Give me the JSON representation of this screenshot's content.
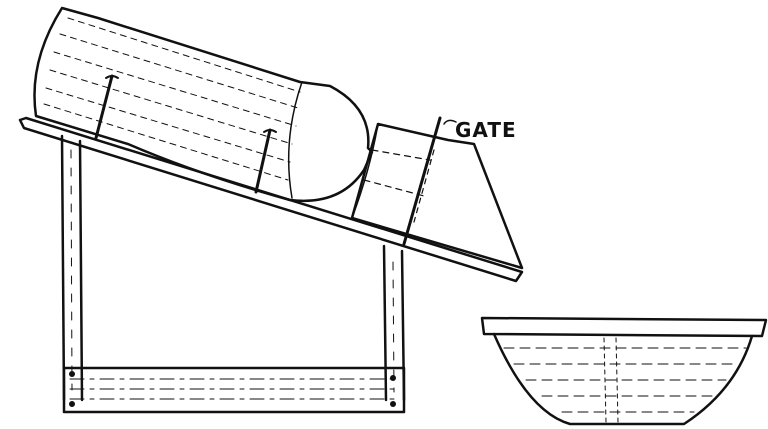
{
  "labels": {
    "gate": "GATE"
  },
  "colors": {
    "ink": "#111111",
    "paper": "#ffffff"
  }
}
